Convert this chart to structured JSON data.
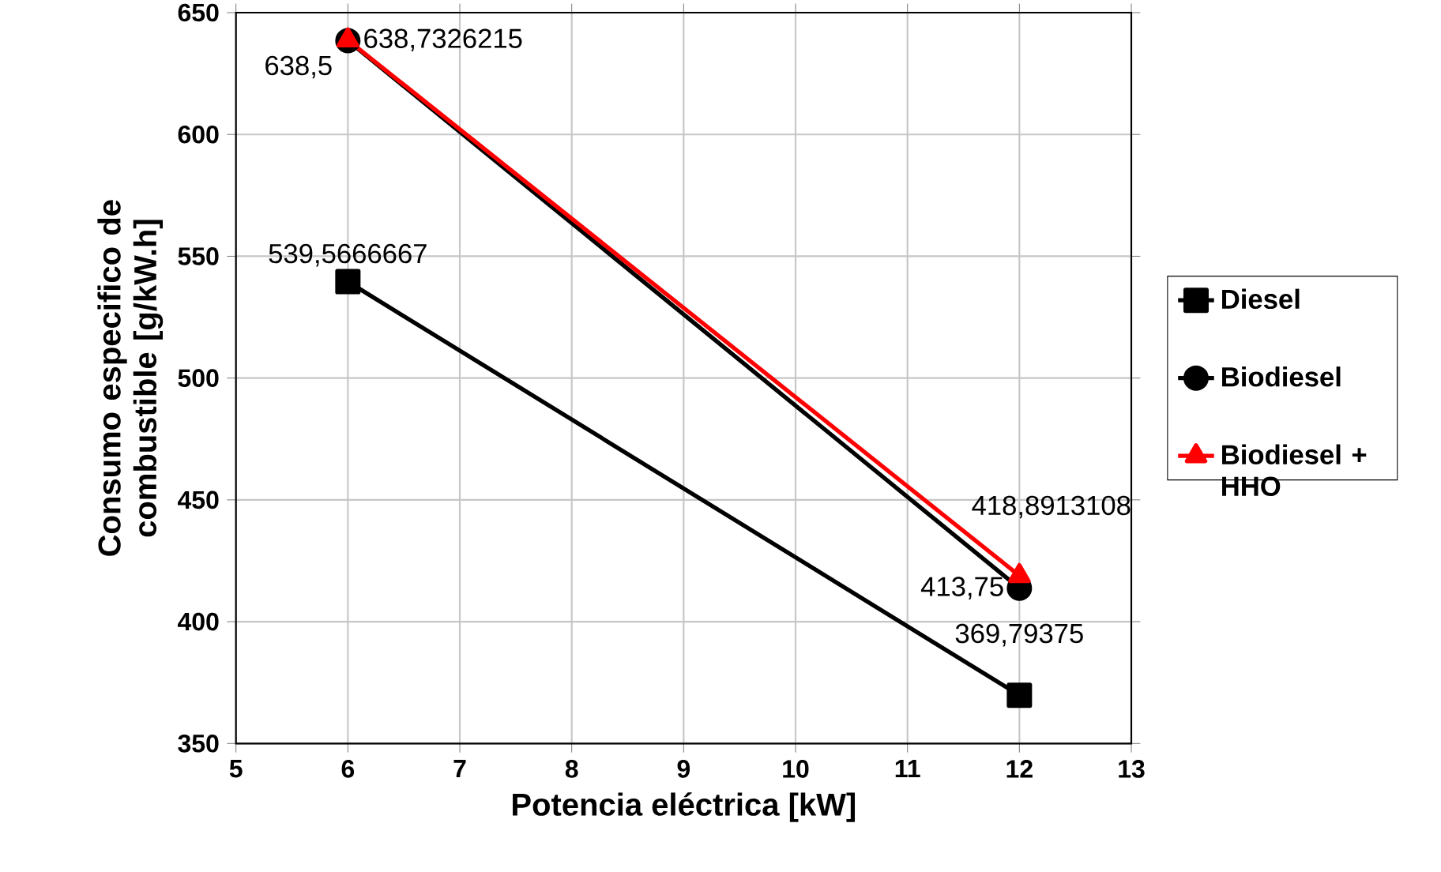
{
  "chart_data": {
    "type": "line",
    "xlabel": "Potencia eléctrica  [kW]",
    "ylabel": "Consumo  especifico  de combustible  [g/kW.h]",
    "x": [
      6,
      12
    ],
    "xlim": [
      5,
      13
    ],
    "xticks": [
      5,
      6,
      7,
      8,
      9,
      10,
      11,
      12,
      13
    ],
    "ylim": [
      350,
      650
    ],
    "yticks": [
      350,
      400,
      450,
      500,
      550,
      600,
      650
    ],
    "grid": true,
    "legend": "right",
    "series": [
      {
        "name": "Diesel",
        "color": "#000000",
        "marker": "square",
        "values": [
          539.5666667,
          369.79375
        ],
        "value_labels": [
          "539,5666667",
          "369,79375"
        ]
      },
      {
        "name": "Biodiesel",
        "color": "#000000",
        "marker": "circle",
        "values": [
          638.5,
          413.75
        ],
        "value_labels": [
          "638,5",
          "413,75"
        ]
      },
      {
        "name": "Biodiesel + HHO",
        "color": "#ff0000",
        "marker": "triangle",
        "values": [
          638.7326215,
          418.8913108
        ],
        "value_labels": [
          "638,7326215",
          "418,8913108"
        ]
      }
    ]
  }
}
